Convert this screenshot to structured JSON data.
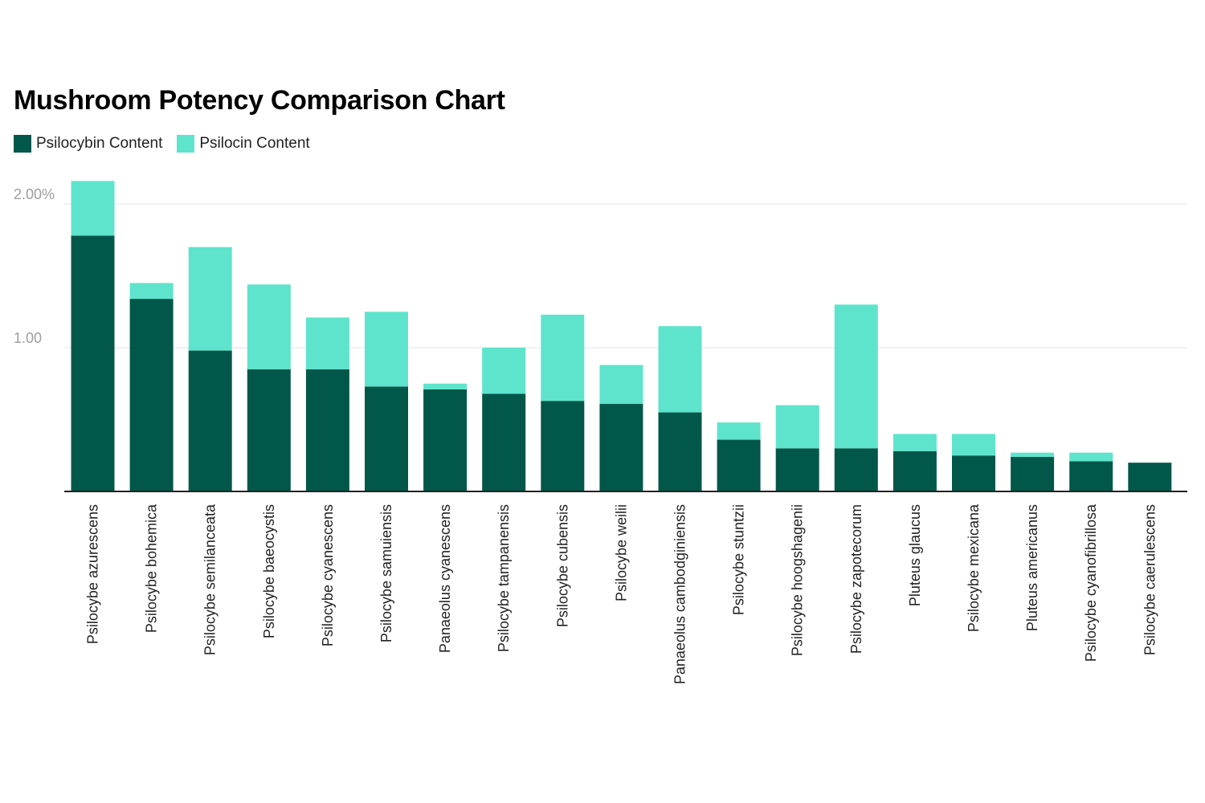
{
  "chart_data": {
    "type": "bar",
    "stacked": true,
    "title": "Mushroom Potency Comparison Chart",
    "xlabel": "",
    "ylabel": "",
    "ylim": [
      0,
      2.2
    ],
    "yticks": [
      {
        "value": 1.0,
        "label": "1.00"
      },
      {
        "value": 2.0,
        "label": "2.00%"
      }
    ],
    "legend_position": "top-left",
    "categories": [
      "Psilocybe azurescens",
      "Psilocybe bohemica",
      "Psilocybe semilanceata",
      "Psilocybe baeocystis",
      "Psilocybe cyanescens",
      "Psilocybe samuiensis",
      "Panaeolus cyanescens",
      "Psilocybe tampanensis",
      "Psilocybe cubensis",
      "Psilocybe weilii",
      "Panaeolus cambodginiensis",
      "Psilocybe stuntzii",
      "Psilocybe hoogshagenii",
      "Psilocybe zapotecorum",
      "Pluteus glaucus",
      "Psilocybe mexicana",
      "Pluteus americanus",
      "Psilocybe cyanofibrillosa",
      "Psilocybe caerulescens"
    ],
    "series": [
      {
        "name": "Psilocybin Content",
        "color": "#01574a",
        "values": [
          1.78,
          1.34,
          0.98,
          0.85,
          0.85,
          0.73,
          0.71,
          0.68,
          0.63,
          0.61,
          0.55,
          0.36,
          0.3,
          0.3,
          0.28,
          0.25,
          0.24,
          0.21,
          0.2
        ]
      },
      {
        "name": "Psilocin Content",
        "color": "#5ee4cc",
        "values": [
          0.38,
          0.11,
          0.72,
          0.59,
          0.36,
          0.52,
          0.04,
          0.32,
          0.6,
          0.27,
          0.6,
          0.12,
          0.3,
          1.0,
          0.12,
          0.15,
          0.03,
          0.06,
          0.0
        ]
      }
    ]
  }
}
